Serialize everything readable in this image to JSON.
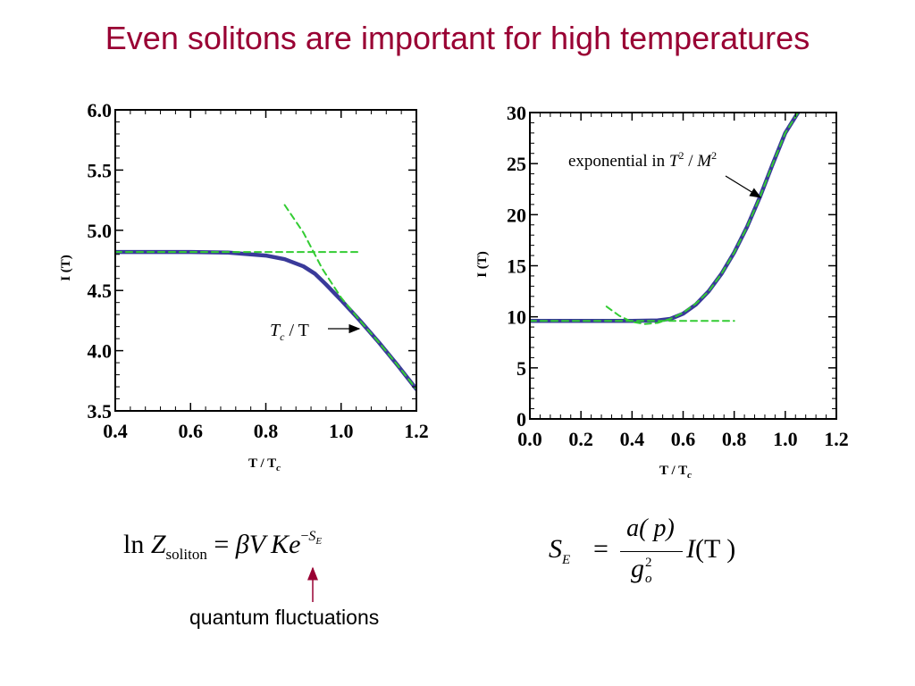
{
  "slide": {
    "title": "Even solitons are important for high temperatures",
    "caption": "quantum fluctuations",
    "title_color": "#990033",
    "arrow_color": "#990033"
  },
  "formula_left": {
    "ln": "ln",
    "Z": "Z",
    "sub": "soliton",
    "eq": "=",
    "beta": "β",
    "V": "V",
    "K": "K",
    "e": "e",
    "sup_minus": "−",
    "sup_S": "S",
    "sup_E": "E"
  },
  "formula_right": {
    "S": "S",
    "sub_E": "E",
    "eq": "=",
    "numerator": "a( p)",
    "g": "g",
    "g_sup": "2",
    "g_sub": "o",
    "I": "I",
    "T": "(T )"
  },
  "chart_data": [
    {
      "type": "line",
      "xlabel": "T / Tc",
      "ylabel": "I (T)",
      "xlim": [
        0.4,
        1.2
      ],
      "ylim": [
        3.5,
        6.0
      ],
      "xticks": [
        "0.4",
        "0.6",
        "0.8",
        "1.0",
        "1.2"
      ],
      "yticks": [
        "3.5",
        "4.0",
        "4.5",
        "5.0",
        "5.5",
        "6.0"
      ],
      "series": [
        {
          "color": "#3a3a9a",
          "style": "solid",
          "x": [
            0.4,
            0.5,
            0.6,
            0.7,
            0.8,
            0.85,
            0.9,
            0.93,
            0.96,
            1.0,
            1.05,
            1.1,
            1.15,
            1.2
          ],
          "y": [
            4.82,
            4.82,
            4.82,
            4.815,
            4.79,
            4.76,
            4.7,
            4.64,
            4.55,
            4.42,
            4.25,
            4.07,
            3.88,
            3.68
          ]
        },
        {
          "color": "#33cc33",
          "style": "dashed",
          "x": [
            0.4,
            1.05
          ],
          "y": [
            4.82,
            4.82
          ]
        },
        {
          "color": "#33cc33",
          "style": "dashed",
          "x": [
            0.85,
            0.9,
            0.95,
            1.0,
            1.05,
            1.1,
            1.15,
            1.2
          ],
          "y": [
            5.21,
            4.98,
            4.68,
            4.44,
            4.25,
            4.07,
            3.88,
            3.68
          ]
        }
      ],
      "annotations": [
        {
          "text_main": "T",
          "text_sub": "c",
          "text_rest": " / T",
          "points_to_x": 1.05,
          "points_to_y": 4.25
        }
      ]
    },
    {
      "type": "line",
      "xlabel": "T / Tc",
      "ylabel": "I (T)",
      "xlim": [
        0.0,
        1.2
      ],
      "ylim": [
        0,
        30
      ],
      "xticks": [
        "0.0",
        "0.2",
        "0.4",
        "0.6",
        "0.8",
        "1.0",
        "1.2"
      ],
      "yticks": [
        "0",
        "5",
        "10",
        "15",
        "20",
        "25",
        "30"
      ],
      "series": [
        {
          "color": "#3a3a9a",
          "style": "solid",
          "x": [
            0.0,
            0.2,
            0.4,
            0.5,
            0.55,
            0.6,
            0.65,
            0.7,
            0.75,
            0.8,
            0.85,
            0.9,
            0.95,
            1.0,
            1.05
          ],
          "y": [
            9.6,
            9.6,
            9.6,
            9.65,
            9.8,
            10.3,
            11.2,
            12.5,
            14.2,
            16.3,
            18.8,
            21.7,
            24.9,
            28.0,
            30.0
          ]
        },
        {
          "color": "#33cc33",
          "style": "dashed",
          "x": [
            0.0,
            0.8
          ],
          "y": [
            9.6,
            9.6
          ]
        },
        {
          "color": "#33cc33",
          "style": "dashed",
          "x": [
            0.3,
            0.35,
            0.4,
            0.45,
            0.5,
            0.55,
            0.6,
            0.65,
            0.7,
            0.75,
            0.8,
            0.85,
            0.9,
            0.95,
            1.0,
            1.05
          ],
          "y": [
            11.0,
            10.1,
            9.5,
            9.3,
            9.4,
            9.8,
            10.4,
            11.3,
            12.5,
            14.2,
            16.3,
            18.8,
            21.7,
            24.9,
            28.0,
            30.0
          ]
        }
      ],
      "annotations": [
        {
          "text_plain": "exponential in ",
          "T": "T",
          "T_sup": "2",
          "slash": " / ",
          "M": "M",
          "M_sup": "2",
          "points_to_x": 0.95,
          "points_to_y": 22.0
        }
      ]
    }
  ]
}
